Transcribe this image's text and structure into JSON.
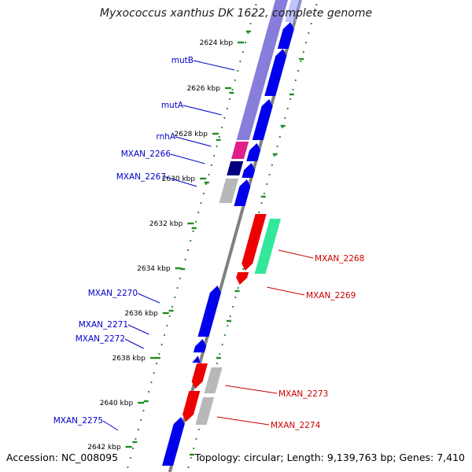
{
  "title": "Myxococcus xanthus DK 1622, complete genome",
  "footer": {
    "accession": "Accession: NC_008095",
    "topology": "Topology: circular; Length: 9,139,763 bp; Genes: 7,410"
  },
  "scale": {
    "ticks": [
      "2624 kbp",
      "2626 kbp",
      "2628 kbp",
      "2630 kbp",
      "2632 kbp",
      "2634 kbp",
      "2636 kbp",
      "2638 kbp",
      "2640 kbp",
      "2642 kbp"
    ]
  },
  "genes_left": [
    {
      "name": "mutB",
      "color": "#0000c8"
    },
    {
      "name": "mutA",
      "color": "#0000c8"
    },
    {
      "name": "rnhA",
      "color": "#0000c8"
    },
    {
      "name": "MXAN_2266",
      "color": "#0000c8"
    },
    {
      "name": "MXAN_2267",
      "color": "#0000c8"
    },
    {
      "name": "MXAN_2270",
      "color": "#0000c8"
    },
    {
      "name": "MXAN_2271",
      "color": "#0000c8"
    },
    {
      "name": "MXAN_2272",
      "color": "#0000c8"
    },
    {
      "name": "MXAN_2275",
      "color": "#0000c8"
    }
  ],
  "genes_right": [
    {
      "name": "MXAN_2268",
      "color": "#cc0000"
    },
    {
      "name": "MXAN_2269",
      "color": "#cc0000"
    },
    {
      "name": "MXAN_2273",
      "color": "#cc0000"
    },
    {
      "name": "MXAN_2274",
      "color": "#cc0000"
    }
  ],
  "colors": {
    "forward_cds": "#0000ee",
    "reverse_cds": "#ee0000",
    "backbone": "#808080",
    "gc_ring": "#228b22",
    "cog_violet": "#7a6fd6",
    "cog_magenta": "#e0208a",
    "cog_navy": "#000080",
    "cog_green": "#33e89a",
    "cog_gray": "#b8b8b8"
  }
}
